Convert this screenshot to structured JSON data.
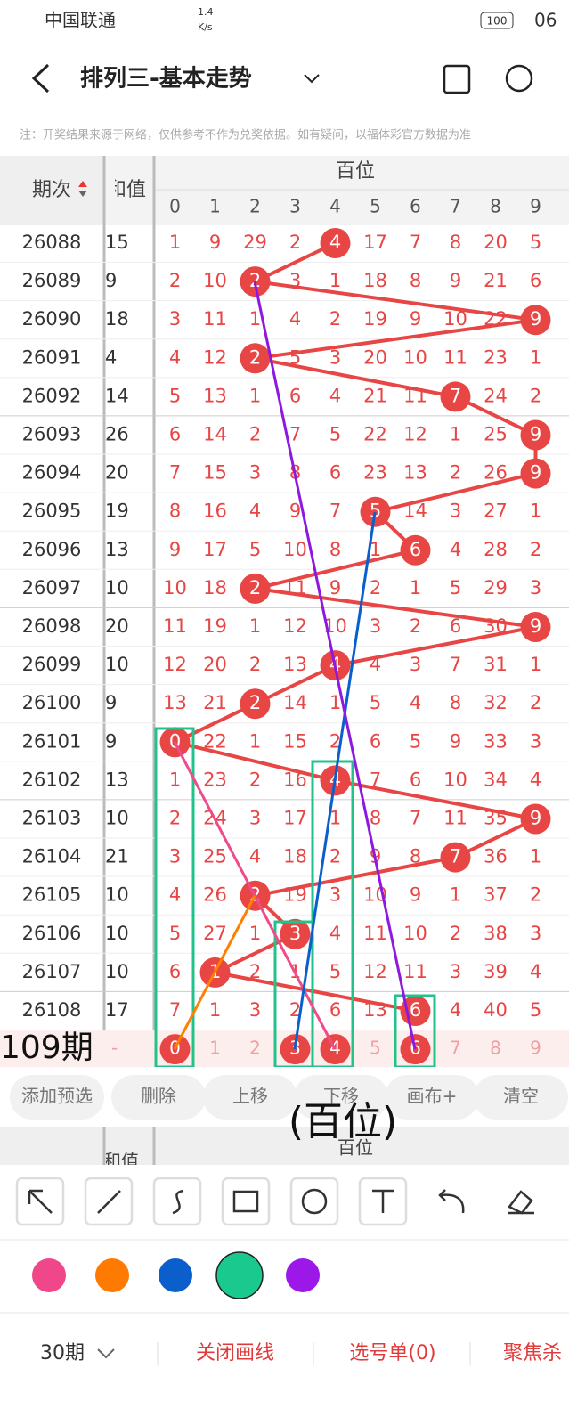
{
  "status": {
    "carrier": "中国联通",
    "speed": "1.4",
    "speed_unit": "K/s",
    "battery": "100",
    "time": "06"
  },
  "header": {
    "title": "排列三-基本走势",
    "note": "注：开奖结果来源于网络，仅供参考不作为兑奖依据。如有疑问，以福体彩官方数据为准"
  },
  "table": {
    "issue_header": "期次",
    "sum_header": "和值",
    "group": "百位",
    "digits": [
      0,
      1,
      2,
      3,
      4,
      5,
      6,
      7,
      8,
      9
    ],
    "rows": [
      {
        "issue": "26088",
        "sum": 15,
        "cells": [
          1,
          9,
          29,
          2,
          4,
          17,
          7,
          8,
          20,
          5
        ],
        "hit": 4
      },
      {
        "issue": "26089",
        "sum": 9,
        "cells": [
          2,
          10,
          2,
          3,
          1,
          18,
          8,
          9,
          21,
          6
        ],
        "hit": 2
      },
      {
        "issue": "26090",
        "sum": 18,
        "cells": [
          3,
          11,
          1,
          4,
          2,
          19,
          9,
          10,
          22,
          9
        ],
        "hit": 9
      },
      {
        "issue": "26091",
        "sum": 4,
        "cells": [
          4,
          12,
          2,
          5,
          3,
          20,
          10,
          11,
          23,
          1
        ],
        "hit": 2
      },
      {
        "issue": "26092",
        "sum": 14,
        "cells": [
          5,
          13,
          1,
          6,
          4,
          21,
          11,
          7,
          24,
          2
        ],
        "hit": 7
      },
      {
        "issue": "26093",
        "sum": 26,
        "cells": [
          6,
          14,
          2,
          7,
          5,
          22,
          12,
          1,
          25,
          9
        ],
        "hit": 9
      },
      {
        "issue": "26094",
        "sum": 20,
        "cells": [
          7,
          15,
          3,
          8,
          6,
          23,
          13,
          2,
          26,
          9
        ],
        "hit": 9
      },
      {
        "issue": "26095",
        "sum": 19,
        "cells": [
          8,
          16,
          4,
          9,
          7,
          5,
          14,
          3,
          27,
          1
        ],
        "hit": 5
      },
      {
        "issue": "26096",
        "sum": 13,
        "cells": [
          9,
          17,
          5,
          10,
          8,
          1,
          6,
          4,
          28,
          2
        ],
        "hit": 6
      },
      {
        "issue": "26097",
        "sum": 10,
        "cells": [
          10,
          18,
          2,
          11,
          9,
          2,
          1,
          5,
          29,
          3
        ],
        "hit": 2
      },
      {
        "issue": "26098",
        "sum": 20,
        "cells": [
          11,
          19,
          1,
          12,
          10,
          3,
          2,
          6,
          30,
          9
        ],
        "hit": 9
      },
      {
        "issue": "26099",
        "sum": 10,
        "cells": [
          12,
          20,
          2,
          13,
          4,
          4,
          3,
          7,
          31,
          1
        ],
        "hit": 4
      },
      {
        "issue": "26100",
        "sum": 9,
        "cells": [
          13,
          21,
          2,
          14,
          1,
          5,
          4,
          8,
          32,
          2
        ],
        "hit": 2
      },
      {
        "issue": "26101",
        "sum": 9,
        "cells": [
          0,
          22,
          1,
          15,
          2,
          6,
          5,
          9,
          33,
          3
        ],
        "hit": 0
      },
      {
        "issue": "26102",
        "sum": 13,
        "cells": [
          1,
          23,
          2,
          16,
          4,
          7,
          6,
          10,
          34,
          4
        ],
        "hit": 4
      },
      {
        "issue": "26103",
        "sum": 10,
        "cells": [
          2,
          24,
          3,
          17,
          1,
          8,
          7,
          11,
          35,
          9
        ],
        "hit": 9
      },
      {
        "issue": "26104",
        "sum": 21,
        "cells": [
          3,
          25,
          4,
          18,
          2,
          9,
          8,
          7,
          36,
          1
        ],
        "hit": 7
      },
      {
        "issue": "26105",
        "sum": 10,
        "cells": [
          4,
          26,
          2,
          19,
          3,
          10,
          9,
          1,
          37,
          2
        ],
        "hit": 2
      },
      {
        "issue": "26106",
        "sum": 10,
        "cells": [
          5,
          27,
          1,
          3,
          4,
          11,
          10,
          2,
          38,
          3
        ],
        "hit": 3
      },
      {
        "issue": "26107",
        "sum": 10,
        "cells": [
          6,
          1,
          2,
          1,
          5,
          12,
          11,
          3,
          39,
          4
        ],
        "hit": 1
      },
      {
        "issue": "26108",
        "sum": 17,
        "cells": [
          7,
          1,
          3,
          2,
          6,
          13,
          6,
          4,
          40,
          5
        ],
        "hit": 6
      }
    ],
    "predict": {
      "sum": "-",
      "cells": [
        0,
        1,
        2,
        3,
        4,
        5,
        6,
        7,
        8,
        9
      ],
      "picks": [
        0,
        3,
        4,
        6
      ]
    }
  },
  "annotations": {
    "period": "109期",
    "label": "(百位)"
  },
  "toolbar": [
    "添加预选",
    "删除",
    "上移",
    "下移",
    "画布+",
    "清空"
  ],
  "sticky_header": {
    "sum": "和值",
    "group": "百位"
  },
  "bottom": {
    "period": "30期",
    "close": "关闭画线",
    "list": "选号单(0)",
    "focus": "聚焦杀"
  }
}
